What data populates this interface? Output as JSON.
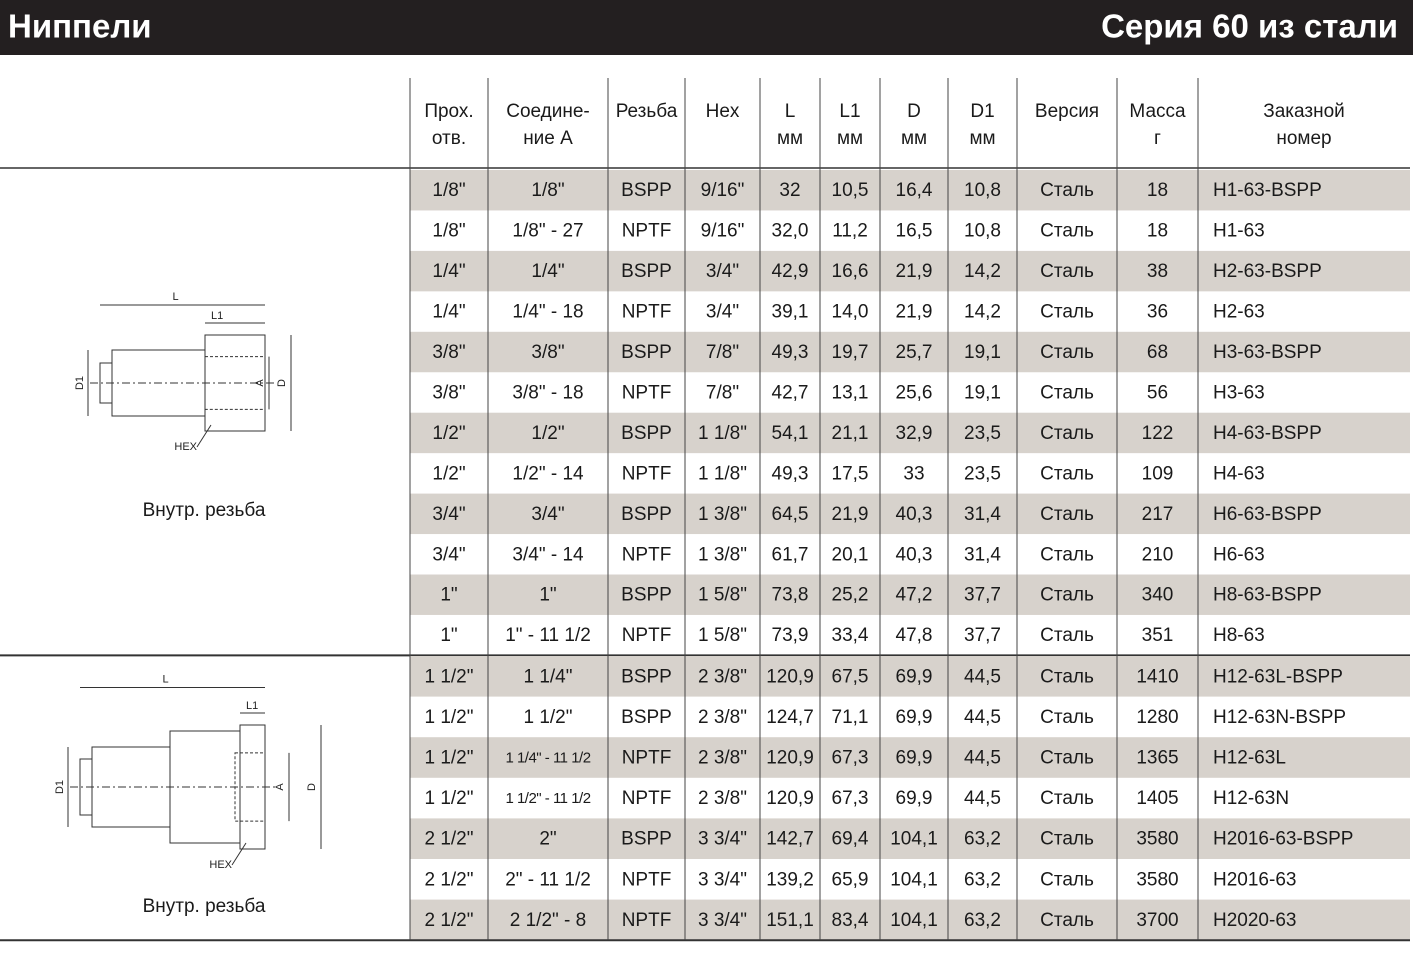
{
  "header": {
    "title": "Ниппели",
    "series": "Серия 60 из стали"
  },
  "table": {
    "columns": [
      [
        "Прох.",
        "отв."
      ],
      [
        "Соедине-",
        "ние А"
      ],
      [
        "Резьба"
      ],
      [
        "Hex"
      ],
      [
        "L",
        "мм"
      ],
      [
        "L1",
        "мм"
      ],
      [
        "D",
        "мм"
      ],
      [
        "D1",
        "мм"
      ],
      [
        "Версия"
      ],
      [
        "Масса",
        "г"
      ],
      [
        "Заказной",
        "номер"
      ]
    ],
    "groups": [
      {
        "caption": "Внутр. резьба",
        "diagram": [
          "L",
          "L1",
          "D1",
          "A",
          "D",
          "HEX"
        ],
        "rows": [
          [
            "1/8\"",
            "1/8\"",
            "BSPP",
            "9/16\"",
            "32",
            "10,5",
            "16,4",
            "10,8",
            "Сталь",
            "18",
            "H1-63-BSPP"
          ],
          [
            "1/8\"",
            "1/8\" - 27",
            "NPTF",
            "9/16\"",
            "32,0",
            "11,2",
            "16,5",
            "10,8",
            "Сталь",
            "18",
            "H1-63"
          ],
          [
            "1/4\"",
            "1/4\"",
            "BSPP",
            "3/4\"",
            "42,9",
            "16,6",
            "21,9",
            "14,2",
            "Сталь",
            "38",
            "H2-63-BSPP"
          ],
          [
            "1/4\"",
            "1/4\" - 18",
            "NPTF",
            "3/4\"",
            "39,1",
            "14,0",
            "21,9",
            "14,2",
            "Сталь",
            "36",
            "H2-63"
          ],
          [
            "3/8\"",
            "3/8\"",
            "BSPP",
            "7/8\"",
            "49,3",
            "19,7",
            "25,7",
            "19,1",
            "Сталь",
            "68",
            "H3-63-BSPP"
          ],
          [
            "3/8\"",
            "3/8\" - 18",
            "NPTF",
            "7/8\"",
            "42,7",
            "13,1",
            "25,6",
            "19,1",
            "Сталь",
            "56",
            "H3-63"
          ],
          [
            "1/2\"",
            "1/2\"",
            "BSPP",
            "1 1/8\"",
            "54,1",
            "21,1",
            "32,9",
            "23,5",
            "Сталь",
            "122",
            "H4-63-BSPP"
          ],
          [
            "1/2\"",
            "1/2\" - 14",
            "NPTF",
            "1 1/8\"",
            "49,3",
            "17,5",
            "33",
            "23,5",
            "Сталь",
            "109",
            "H4-63"
          ],
          [
            "3/4\"",
            "3/4\"",
            "BSPP",
            "1 3/8\"",
            "64,5",
            "21,9",
            "40,3",
            "31,4",
            "Сталь",
            "217",
            "H6-63-BSPP"
          ],
          [
            "3/4\"",
            "3/4\" - 14",
            "NPTF",
            "1 3/8\"",
            "61,7",
            "20,1",
            "40,3",
            "31,4",
            "Сталь",
            "210",
            "H6-63"
          ],
          [
            "1\"",
            "1\"",
            "BSPP",
            "1 5/8\"",
            "73,8",
            "25,2",
            "47,2",
            "37,7",
            "Сталь",
            "340",
            "H8-63-BSPP"
          ],
          [
            "1\"",
            "1\" - 11 1/2",
            "NPTF",
            "1 5/8\"",
            "73,9",
            "33,4",
            "47,8",
            "37,7",
            "Сталь",
            "351",
            "H8-63"
          ]
        ]
      },
      {
        "caption": "Внутр. резьба",
        "diagram": [
          "L",
          "L1",
          "D1",
          "A",
          "D",
          "HEX"
        ],
        "rows": [
          [
            "1 1/2\"",
            "1 1/4\"",
            "BSPP",
            "2 3/8\"",
            "120,9",
            "67,5",
            "69,9",
            "44,5",
            "Сталь",
            "1410",
            "H12-63L-BSPP"
          ],
          [
            "1 1/2\"",
            "1 1/2\"",
            "BSPP",
            "2 3/8\"",
            "124,7",
            "71,1",
            "69,9",
            "44,5",
            "Сталь",
            "1280",
            "H12-63N-BSPP"
          ],
          [
            "1 1/2\"",
            "1 1/4\" - 11 1/2",
            "NPTF",
            "2 3/8\"",
            "120,9",
            "67,3",
            "69,9",
            "44,5",
            "Сталь",
            "1365",
            "H12-63L"
          ],
          [
            "1 1/2\"",
            "1 1/2\" - 11 1/2",
            "NPTF",
            "2 3/8\"",
            "120,9",
            "67,3",
            "69,9",
            "44,5",
            "Сталь",
            "1405",
            "H12-63N"
          ],
          [
            "2 1/2\"",
            "2\"",
            "BSPP",
            "3 3/4\"",
            "142,7",
            "69,4",
            "104,1",
            "63,2",
            "Сталь",
            "3580",
            "H2016-63-BSPP"
          ],
          [
            "2 1/2\"",
            "2\" - 11 1/2",
            "NPTF",
            "3 3/4\"",
            "139,2",
            "65,9",
            "104,1",
            "63,2",
            "Сталь",
            "3580",
            "H2016-63"
          ],
          [
            "2 1/2\"",
            "2 1/2\" - 8",
            "NPTF",
            "3 3/4\"",
            "151,1",
            "83,4",
            "104,1",
            "63,2",
            "Сталь",
            "3700",
            "H2020-63"
          ]
        ]
      }
    ]
  }
}
